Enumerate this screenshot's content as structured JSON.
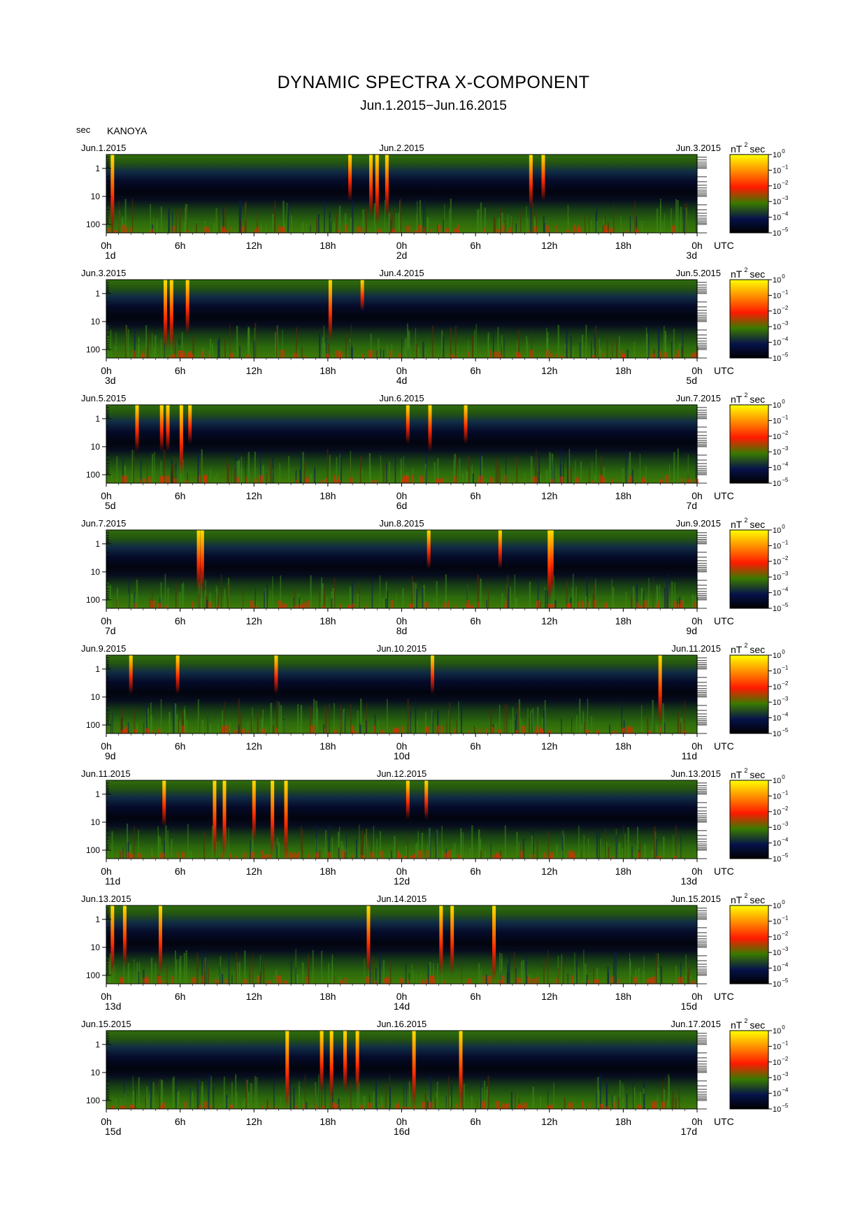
{
  "header": {
    "title": "DYNAMIC SPECTRA X-COMPONENT",
    "subtitle": "Jun.1.2015−Jun.16.2015",
    "unit_label": "sec",
    "station": "KANOYA"
  },
  "colorbar": {
    "unit": "nT",
    "unit_sup": "2",
    "unit_tail": "sec",
    "ticks": [
      {
        "base": "10",
        "exp": "0"
      },
      {
        "base": "10",
        "exp": "−1"
      },
      {
        "base": "10",
        "exp": "−2"
      },
      {
        "base": "10",
        "exp": "−3"
      },
      {
        "base": "10",
        "exp": "−4"
      },
      {
        "base": "10",
        "exp": "−5"
      }
    ],
    "colors": [
      "#ffff00",
      "#ff8800",
      "#ff1a00",
      "#3a7a00",
      "#06124a",
      "#000000"
    ]
  },
  "chart_data": {
    "type": "heatmap",
    "title": "DYNAMIC SPECTRA X-COMPONENT",
    "station": "KANOYA",
    "yaxis": {
      "label": "sec",
      "ticks": [
        "1",
        "10",
        "100"
      ],
      "scale": "log",
      "inverted": true
    },
    "xaxis_ticks": [
      "0h",
      "6h",
      "12h",
      "18h",
      "0h",
      "6h",
      "12h",
      "18h",
      "0h"
    ],
    "utc_label": "UTC",
    "panels": [
      {
        "date_left": "Jun.1.2015",
        "date_mid": "Jun.2.2015",
        "date_right": "Jun.3.2015",
        "day_labels": [
          "1d",
          "2d",
          "3d"
        ],
        "bursts": [
          [
            0.5,
            1.0
          ],
          [
            19.8,
            0.6
          ],
          [
            21.5,
            0.8
          ],
          [
            22.0,
            0.9
          ],
          [
            22.8,
            0.8
          ],
          [
            34.5,
            0.7
          ],
          [
            35.5,
            0.6
          ]
        ]
      },
      {
        "date_left": "Jun.3.2015",
        "date_mid": "Jun.4.2015",
        "date_right": "Jun.5.2015",
        "day_labels": [
          "3d",
          "4d",
          "5d"
        ],
        "bursts": [
          [
            4.8,
            0.9
          ],
          [
            5.3,
            0.9
          ],
          [
            6.6,
            0.7
          ],
          [
            18.2,
            0.8
          ],
          [
            20.8,
            0.4
          ]
        ]
      },
      {
        "date_left": "Jun.5.2015",
        "date_mid": "Jun.6.2015",
        "date_right": "Jun.7.2015",
        "day_labels": [
          "5d",
          "6d",
          "7d"
        ],
        "bursts": [
          [
            2.5,
            0.6
          ],
          [
            4.5,
            0.6
          ],
          [
            5.0,
            0.6
          ],
          [
            6.1,
            0.9
          ],
          [
            6.8,
            0.5
          ],
          [
            24.5,
            0.5
          ],
          [
            26.3,
            0.6
          ],
          [
            29.2,
            0.5
          ]
        ]
      },
      {
        "date_left": "Jun.7.2015",
        "date_mid": "Jun.8.2015",
        "date_right": "Jun.9.2015",
        "day_labels": [
          "7d",
          "8d",
          "9d"
        ],
        "bursts": [
          [
            7.5,
            0.8
          ],
          [
            7.8,
            0.8
          ],
          [
            26.2,
            0.5
          ],
          [
            32.0,
            0.5
          ],
          [
            36.0,
            0.9
          ],
          [
            36.2,
            0.8
          ]
        ]
      },
      {
        "date_left": "Jun.9.2015",
        "date_mid": "Jun.10.2015",
        "date_right": "Jun.11.2015",
        "day_labels": [
          "9d",
          "10d",
          "11d"
        ],
        "bursts": [
          [
            2.0,
            0.5
          ],
          [
            5.8,
            0.5
          ],
          [
            13.8,
            0.5
          ],
          [
            26.5,
            0.5
          ],
          [
            45.0,
            0.9
          ]
        ]
      },
      {
        "date_left": "Jun.11.2015",
        "date_mid": "Jun.12.2015",
        "date_right": "Jun.13.2015",
        "day_labels": [
          "11d",
          "12d",
          "13d"
        ],
        "bursts": [
          [
            8.8,
            1.0
          ],
          [
            9.6,
            1.0
          ],
          [
            12.0,
            0.8
          ],
          [
            13.5,
            1.0
          ],
          [
            14.6,
            1.0
          ],
          [
            4.7,
            0.6
          ],
          [
            24.5,
            0.5
          ],
          [
            26.0,
            0.5
          ]
        ]
      },
      {
        "date_left": "Jun.13.2015",
        "date_mid": "Jun.14.2015",
        "date_right": "Jun.15.2015",
        "day_labels": [
          "13d",
          "14d",
          "15d"
        ],
        "bursts": [
          [
            0.5,
            0.9
          ],
          [
            1.5,
            0.8
          ],
          [
            4.4,
            0.9
          ],
          [
            21.3,
            0.9
          ],
          [
            27.2,
            0.9
          ],
          [
            28.1,
            0.9
          ],
          [
            31.5,
            1.0
          ]
        ]
      },
      {
        "date_left": "Jun.15.2015",
        "date_mid": "Jun.16.2015",
        "date_right": "Jun.17.2015",
        "day_labels": [
          "15d",
          "16d",
          "17d"
        ],
        "bursts": [
          [
            14.7,
            1.0
          ],
          [
            17.5,
            0.8
          ],
          [
            18.3,
            0.9
          ],
          [
            19.4,
            0.8
          ],
          [
            20.4,
            0.8
          ],
          [
            25.0,
            1.0
          ],
          [
            28.8,
            1.0
          ]
        ]
      }
    ]
  }
}
